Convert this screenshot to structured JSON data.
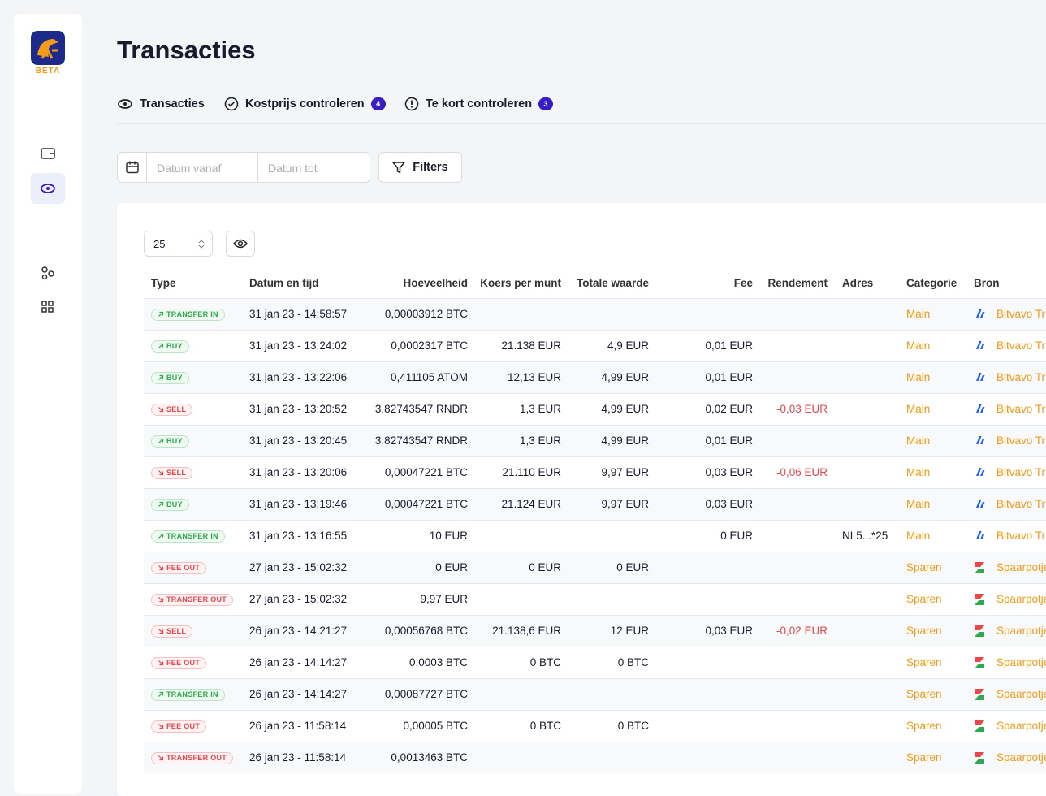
{
  "sidebar": {
    "badge": "BETA"
  },
  "header": {
    "title": "Transacties"
  },
  "tabs": [
    {
      "label": "Transacties",
      "active": true
    },
    {
      "label": "Kostprijs controleren",
      "count": 4
    },
    {
      "label": "Te kort controleren",
      "count": 3
    }
  ],
  "filters": {
    "date_from": "Datum vanaf",
    "date_to": "Datum tot",
    "button": "Filters"
  },
  "table": {
    "page_size": 25,
    "columns": [
      "Type",
      "Datum en tijd",
      "Hoeveelheid",
      "Koers per munt",
      "Totale waarde",
      "Fee",
      "Rendement",
      "Adres",
      "Categorie",
      "Bron"
    ],
    "rows": [
      {
        "tone": "green",
        "icon": "bitvavo",
        "cells": [
          "TRANSFER IN",
          "31 jan 23 - 14:58:57",
          "0,00003912 BTC",
          null,
          null,
          null,
          null,
          null,
          "Main",
          "Bitvavo Tr"
        ]
      },
      {
        "tone": "green",
        "icon": "bitvavo",
        "cells": [
          "BUY",
          "31 jan 23 - 13:24:02",
          "0,0002317 BTC",
          "21.138 EUR",
          "4,9 EUR",
          "0,01 EUR",
          null,
          null,
          "Main",
          "Bitvavo Tr"
        ]
      },
      {
        "tone": "green",
        "icon": "bitvavo",
        "cells": [
          "BUY",
          "31 jan 23 - 13:22:06",
          "0,411105 ATOM",
          "12,13 EUR",
          "4,99 EUR",
          "0,01 EUR",
          null,
          null,
          "Main",
          "Bitvavo Tr"
        ]
      },
      {
        "tone": "red",
        "icon": "bitvavo",
        "cells": [
          "SELL",
          "31 jan 23 - 13:20:52",
          "3,82743547 RNDR",
          "1,3 EUR",
          "4,99 EUR",
          "0,02 EUR",
          "-0,03 EUR",
          null,
          "Main",
          "Bitvavo Tr"
        ]
      },
      {
        "tone": "green",
        "icon": "bitvavo",
        "cells": [
          "BUY",
          "31 jan 23 - 13:20:45",
          "3,82743547 RNDR",
          "1,3 EUR",
          "4,99 EUR",
          "0,01 EUR",
          null,
          null,
          "Main",
          "Bitvavo Tr"
        ]
      },
      {
        "tone": "red",
        "icon": "bitvavo",
        "cells": [
          "SELL",
          "31 jan 23 - 13:20:06",
          "0,00047221 BTC",
          "21.110 EUR",
          "9,97 EUR",
          "0,03 EUR",
          "-0,06 EUR",
          null,
          "Main",
          "Bitvavo Tr"
        ]
      },
      {
        "tone": "green",
        "icon": "bitvavo",
        "cells": [
          "BUY",
          "31 jan 23 - 13:19:46",
          "0,00047221 BTC",
          "21.124 EUR",
          "9,97 EUR",
          "0,03 EUR",
          null,
          null,
          "Main",
          "Bitvavo Tr"
        ]
      },
      {
        "tone": "green",
        "icon": "bitvavo",
        "cells": [
          "TRANSFER IN",
          "31 jan 23 - 13:16:55",
          "10 EUR",
          null,
          null,
          "0 EUR",
          null,
          "NL5...*25",
          "Main",
          "Bitvavo Tr"
        ]
      },
      {
        "tone": "red",
        "icon": "spaar",
        "cells": [
          "FEE OUT",
          "27 jan 23 - 15:02:32",
          "0 EUR",
          "0 EUR",
          "0 EUR",
          null,
          null,
          null,
          "Sparen",
          "Spaarpotje"
        ]
      },
      {
        "tone": "red",
        "icon": "spaar",
        "cells": [
          "TRANSFER OUT",
          "27 jan 23 - 15:02:32",
          "9,97 EUR",
          null,
          null,
          null,
          null,
          null,
          "Sparen",
          "Spaarpotje"
        ]
      },
      {
        "tone": "red",
        "icon": "spaar",
        "cells": [
          "SELL",
          "26 jan 23 - 14:21:27",
          "0,00056768 BTC",
          "21.138,6 EUR",
          "12 EUR",
          "0,03 EUR",
          "-0,02 EUR",
          null,
          "Sparen",
          "Spaarpotje"
        ]
      },
      {
        "tone": "red",
        "icon": "spaar",
        "cells": [
          "FEE OUT",
          "26 jan 23 - 14:14:27",
          "0,0003 BTC",
          "0 BTC",
          "0 BTC",
          null,
          null,
          null,
          "Sparen",
          "Spaarpotje"
        ]
      },
      {
        "tone": "green",
        "icon": "spaar",
        "cells": [
          "TRANSFER IN",
          "26 jan 23 - 14:14:27",
          "0,00087727 BTC",
          null,
          null,
          null,
          null,
          null,
          "Sparen",
          "Spaarpotje"
        ]
      },
      {
        "tone": "red",
        "icon": "spaar",
        "cells": [
          "FEE OUT",
          "26 jan 23 - 11:58:14",
          "0,00005 BTC",
          "0 BTC",
          "0 BTC",
          null,
          null,
          null,
          "Sparen",
          "Spaarpotje"
        ]
      },
      {
        "tone": "red",
        "icon": "spaar",
        "cells": [
          "TRANSFER OUT",
          "26 jan 23 - 11:58:14",
          "0,0013463 BTC",
          null,
          null,
          null,
          null,
          null,
          "Sparen",
          "Spaarpotje"
        ]
      }
    ]
  }
}
